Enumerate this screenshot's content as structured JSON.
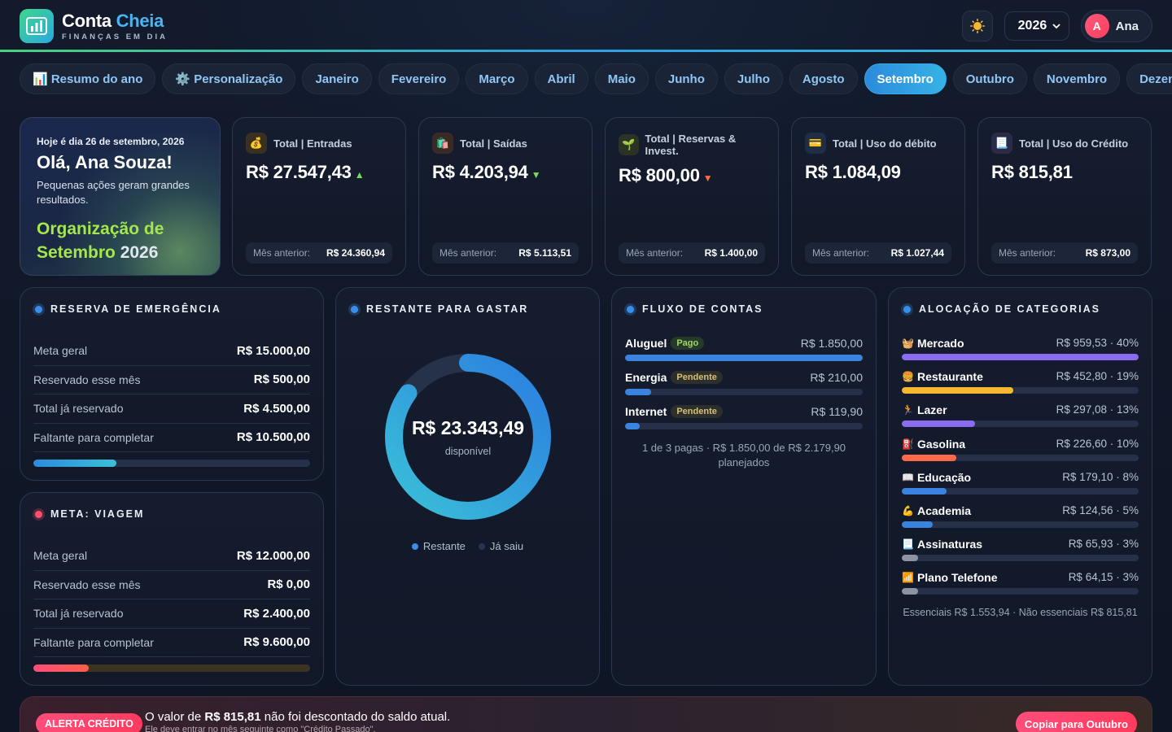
{
  "app": {
    "name_part1": "Conta ",
    "name_part2": "Cheia",
    "tagline": "FINANÇAS EM DIA"
  },
  "header": {
    "theme_icon": "sun-icon",
    "year": "2026",
    "user_initial": "A",
    "user_name": "Ana"
  },
  "tabs": [
    {
      "label": "📊 Resumo do ano"
    },
    {
      "label": "⚙️ Personalização"
    },
    {
      "label": "Janeiro"
    },
    {
      "label": "Fevereiro"
    },
    {
      "label": "Março"
    },
    {
      "label": "Abril"
    },
    {
      "label": "Maio"
    },
    {
      "label": "Junho"
    },
    {
      "label": "Julho"
    },
    {
      "label": "Agosto"
    },
    {
      "label": "Setembro",
      "active": true
    },
    {
      "label": "Outubro"
    },
    {
      "label": "Novembro"
    },
    {
      "label": "Dezembro"
    }
  ],
  "hero": {
    "date": "Hoje é dia 26 de setembro, 2026",
    "greeting": "Olá, Ana Souza!",
    "subtitle": "Pequenas ações geram grandes resultados.",
    "org_line1": "Organização de",
    "org_month": "Setembro",
    "org_year": "2026"
  },
  "summary_cards": [
    {
      "label": "Total | Entradas",
      "icon": "💰",
      "value": "R$ 27.547,43",
      "arrow": "▲",
      "arrow_color": "#7ed957",
      "prev_label": "Mês anterior:",
      "prev_value": "R$ 24.360,94",
      "icon_bg": "#3a3020"
    },
    {
      "label": "Total | Saídas",
      "icon": "🛍️",
      "value": "R$ 4.203,94",
      "arrow": "▼",
      "arrow_color": "#7ed957",
      "prev_label": "Mês anterior:",
      "prev_value": "R$ 5.113,51",
      "icon_bg": "#3a2a24"
    },
    {
      "label": "Total | Reservas & Invest.",
      "icon": "🌱",
      "value": "R$ 800,00",
      "arrow": "▼",
      "arrow_color": "#ff6b4a",
      "prev_label": "Mês anterior:",
      "prev_value": "R$ 1.400,00",
      "icon_bg": "#2a3324"
    },
    {
      "label": "Total | Uso do débito",
      "icon": "💳",
      "value": "R$ 1.084,09",
      "arrow": "",
      "arrow_color": "#ffffff",
      "prev_label": "Mês anterior:",
      "prev_value": "R$ 1.027,44",
      "icon_bg": "#1f2e44"
    },
    {
      "label": "Total | Uso do Crédito",
      "icon": "📃",
      "value": "R$ 815,81",
      "arrow": "",
      "arrow_color": "#ffffff",
      "prev_label": "Mês anterior:",
      "prev_value": "R$ 873,00",
      "icon_bg": "#2c2a44"
    }
  ],
  "emergency": {
    "title": "RESERVA DE EMERGÊNCIA",
    "rows": [
      {
        "label": "Meta geral",
        "value": "R$ 15.000,00"
      },
      {
        "label": "Reservado esse mês",
        "value": "R$ 500,00"
      },
      {
        "label": "Total já reservado",
        "value": "R$ 4.500,00"
      },
      {
        "label": "Faltante para completar",
        "value": "R$ 10.500,00"
      }
    ],
    "progress": 0.3
  },
  "goal": {
    "title": "META: VIAGEM",
    "rows": [
      {
        "label": "Meta geral",
        "value": "R$ 12.000,00"
      },
      {
        "label": "Reservado esse mês",
        "value": "R$ 0,00"
      },
      {
        "label": "Total já reservado",
        "value": "R$ 2.400,00"
      },
      {
        "label": "Faltante para completar",
        "value": "R$ 9.600,00"
      }
    ],
    "progress": 0.2
  },
  "remaining": {
    "title": "RESTANTE PARA GASTAR",
    "amount": "R$ 23.343,49",
    "caption": "disponível",
    "remaining_fraction": 0.85,
    "legend_remaining": "Restante",
    "legend_spent": "Já saiu",
    "color_remaining": "#3b8ee8",
    "color_spent": "#26314a"
  },
  "flow": {
    "title": "FLUXO DE CONTAS",
    "items": [
      {
        "name": "Aluguel",
        "status": "Pago",
        "status_type": "pago",
        "amount": "R$ 1.850,00",
        "fraction": 1.0
      },
      {
        "name": "Energia",
        "status": "Pendente",
        "status_type": "pend",
        "amount": "R$ 210,00",
        "fraction": 0.11
      },
      {
        "name": "Internet",
        "status": "Pendente",
        "status_type": "pend",
        "amount": "R$ 119,90",
        "fraction": 0.06
      }
    ],
    "note": "1 de 3 pagas · R$ 1.850,00 de R$ 2.179,90 planejados"
  },
  "categories": {
    "title": "ALOCAÇÃO DE CATEGORIAS",
    "items": [
      {
        "icon": "🧺",
        "name": "Mercado",
        "amount": "R$ 959,53 · 40%",
        "fraction": 1.0,
        "color": "#8a6cf0"
      },
      {
        "icon": "🍔",
        "name": "Restaurante",
        "amount": "R$ 452,80 · 19%",
        "fraction": 0.47,
        "color": "#f7b731"
      },
      {
        "icon": "🏃",
        "name": "Lazer",
        "amount": "R$ 297,08 · 13%",
        "fraction": 0.31,
        "color": "#8a6cf0"
      },
      {
        "icon": "⛽",
        "name": "Gasolina",
        "amount": "R$ 226,60 · 10%",
        "fraction": 0.23,
        "color": "#ff6b4a"
      },
      {
        "icon": "📖",
        "name": "Educação",
        "amount": "R$ 179,10 · 8%",
        "fraction": 0.19,
        "color": "#3a84e0"
      },
      {
        "icon": "💪",
        "name": "Academia",
        "amount": "R$ 124,56 · 5%",
        "fraction": 0.13,
        "color": "#3a84e0"
      },
      {
        "icon": "📃",
        "name": "Assinaturas",
        "amount": "R$ 65,93 · 3%",
        "fraction": 0.07,
        "color": "#8c94a3"
      },
      {
        "icon": "📶",
        "name": "Plano Telefone",
        "amount": "R$ 64,15 · 3%",
        "fraction": 0.07,
        "color": "#8c94a3"
      }
    ],
    "note": "Essenciais R$ 1.553,94 · Não essenciais R$ 815,81"
  },
  "alert": {
    "badge": "ALERTA CRÉDITO",
    "text_pre": "O valor de ",
    "text_amount": "R$ 815,81",
    "text_post": " não foi descontado do saldo atual.",
    "subtext": "Ele deve entrar no mês seguinte como \"Crédito Passado\".",
    "button": "Copiar para Outubro"
  }
}
